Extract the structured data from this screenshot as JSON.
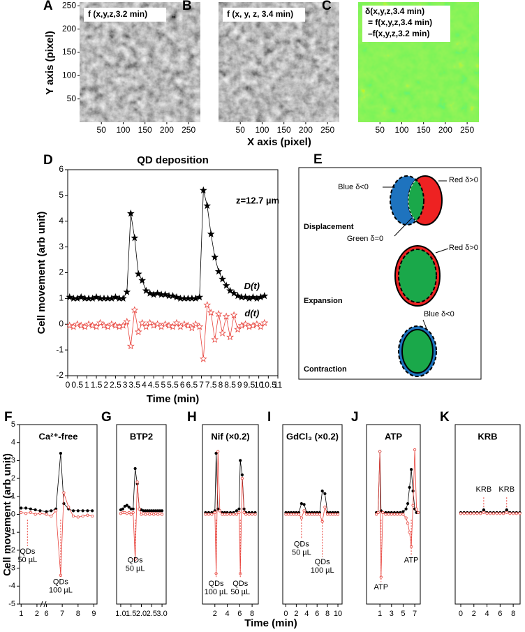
{
  "chart_data": [
    {
      "type": "image",
      "panel": "A",
      "title": "f (x,y,z,3.2 min)",
      "palette": "gray",
      "xlim": [
        0,
        277
      ],
      "xticks": [
        50,
        100,
        150,
        200,
        250
      ],
      "ylim": [
        0,
        258
      ],
      "yticks": [
        50,
        100,
        150,
        200,
        250
      ]
    },
    {
      "type": "image",
      "panel": "B",
      "title": "f (x, y, z, 3.4 min)",
      "palette": "gray",
      "xlim": [
        0,
        277
      ],
      "xticks": [
        50,
        100,
        150,
        200,
        250
      ],
      "ylim": [
        0,
        258
      ]
    },
    {
      "type": "image",
      "panel": "C",
      "title_lines": [
        "δ(x,y,z,3.4 min)",
        "= f(x,y,z,3.4 min)",
        "–f(x,y,z,3.2 min)"
      ],
      "palette": "jet",
      "xlim": [
        0,
        277
      ],
      "xticks": [
        50,
        100,
        150,
        200,
        250
      ],
      "ylim": [
        0,
        258
      ]
    },
    {
      "type": "line",
      "panel": "D",
      "title": "QD deposition",
      "annotation": "z=12.7 µm",
      "x_label": "Time (min)",
      "y_label": "Cell movement (arb unit)",
      "xlim": [
        0,
        11
      ],
      "xticks": [
        0,
        0.5,
        1,
        1.5,
        2,
        2.5,
        3,
        3.5,
        4,
        4.5,
        5,
        5.5,
        6,
        6.5,
        7,
        7.5,
        8,
        8.5,
        9,
        9.5,
        10,
        10.5,
        11
      ],
      "ylim": [
        -2,
        6
      ],
      "yticks": [
        -2,
        -1,
        0,
        1,
        2,
        3,
        4,
        5,
        6
      ],
      "x": [
        0.1,
        0.3,
        0.5,
        0.7,
        0.9,
        1.1,
        1.3,
        1.5,
        1.7,
        1.9,
        2.1,
        2.3,
        2.5,
        2.7,
        2.9,
        3.1,
        3.3,
        3.5,
        3.7,
        3.9,
        4.1,
        4.3,
        4.5,
        4.7,
        4.9,
        5.1,
        5.3,
        5.5,
        5.7,
        5.9,
        6.1,
        6.3,
        6.5,
        6.7,
        6.9,
        7.1,
        7.3,
        7.5,
        7.7,
        7.9,
        8.1,
        8.3,
        8.5,
        8.7,
        8.9,
        9.1,
        9.3,
        9.5,
        9.7,
        9.9,
        10.1,
        10.3
      ],
      "series": [
        {
          "name": "D(t)",
          "color": "#000000",
          "marker": "star",
          "filled": true,
          "values": [
            1.05,
            1.0,
            1.0,
            1.05,
            1.0,
            1.0,
            1.0,
            1.05,
            1.0,
            1.0,
            1.0,
            1.0,
            1.05,
            1.0,
            1.0,
            1.25,
            4.3,
            3.35,
            1.95,
            1.7,
            1.3,
            1.2,
            1.15,
            1.2,
            1.15,
            1.15,
            1.1,
            1.1,
            1.05,
            1.0,
            1.0,
            1.0,
            1.0,
            1.0,
            1.05,
            5.2,
            4.6,
            3.5,
            2.6,
            2.05,
            1.75,
            1.5,
            1.3,
            1.2,
            1.1,
            1.05,
            1.05,
            1.0,
            1.05,
            1.0,
            1.05,
            1.1
          ]
        },
        {
          "name": "d(t)",
          "color": "#e8413a",
          "marker": "star",
          "filled": false,
          "values": [
            -0.05,
            -0.1,
            0.0,
            -0.05,
            -0.1,
            0.0,
            -0.05,
            -0.1,
            0.05,
            -0.05,
            -0.1,
            0.0,
            -0.05,
            -0.1,
            -0.05,
            0.1,
            -0.85,
            0.55,
            -0.3,
            0.05,
            -0.1,
            0.05,
            -0.05,
            0.0,
            -0.1,
            0.0,
            -0.05,
            -0.1,
            0.05,
            -0.1,
            0.0,
            -0.05,
            -0.15,
            0.0,
            -0.1,
            -1.35,
            0.75,
            0.45,
            -0.6,
            0.4,
            -0.35,
            0.3,
            -0.5,
            0.35,
            -0.2,
            -0.05,
            0.0,
            -0.1,
            -0.05,
            0.0,
            -0.1,
            0.05
          ]
        }
      ]
    },
    {
      "type": "line",
      "panel": "F",
      "title": "Ca²⁺-free",
      "xlim": [
        0.9,
        9.2
      ],
      "xbreak": [
        2.4,
        5.8
      ],
      "xticks": [
        1,
        2,
        6,
        7,
        8,
        9
      ],
      "ylim": [
        -5,
        5
      ],
      "yticks": [
        -5,
        -4,
        -3,
        -2,
        -1,
        0,
        1,
        2,
        3,
        4,
        5
      ],
      "x": [
        1,
        1.3,
        1.6,
        1.9,
        2.2,
        6.0,
        6.3,
        6.6,
        6.9,
        7.1,
        7.4,
        7.7,
        8.0,
        8.3,
        8.6,
        8.9
      ],
      "series": [
        {
          "color": "#000000",
          "marker": "circle",
          "filled": true,
          "values": [
            0.35,
            0.35,
            0.3,
            0.25,
            0.2,
            0.15,
            0.2,
            0.3,
            3.4,
            0.6,
            0.3,
            0.2,
            0.2,
            0.2,
            0.2,
            0.2
          ]
        },
        {
          "color": "#e8413a",
          "marker": "circle",
          "filled": false,
          "values": [
            0.1,
            0.05,
            0.1,
            0.0,
            0.05,
            0.0,
            -0.1,
            0.2,
            -3.4,
            1.2,
            0.4,
            -0.1,
            -0.15,
            -0.1,
            -0.05,
            -0.1
          ]
        }
      ],
      "annotations": [
        {
          "x": 1.4,
          "text": [
            "QDs",
            "50 µL"
          ]
        },
        {
          "x": 6.9,
          "text": [
            "QDs",
            "100 µL"
          ]
        }
      ]
    },
    {
      "type": "line",
      "panel": "G",
      "title": "BTP2",
      "xlim": [
        0.8,
        3.2
      ],
      "xticks": [
        {
          "value": 1,
          "label": "1.0"
        },
        {
          "value": 1.5,
          "label": "1.5"
        },
        {
          "value": 2,
          "label": "2.0"
        },
        {
          "value": 2.5,
          "label": "2.5"
        },
        {
          "value": 3,
          "label": "3.0"
        }
      ],
      "ylim": [
        -5,
        5
      ],
      "x": [
        1.0,
        1.1,
        1.2,
        1.3,
        1.4,
        1.5,
        1.6,
        1.7,
        1.8,
        1.9,
        2.0,
        2.1,
        2.2,
        2.3,
        2.4,
        2.5,
        2.6,
        2.7,
        2.8,
        2.9,
        3.0
      ],
      "series": [
        {
          "color": "#000000",
          "marker": "circle",
          "filled": true,
          "values": [
            0.25,
            0.3,
            0.45,
            0.5,
            0.4,
            0.3,
            0.3,
            2.55,
            1.7,
            0.3,
            0.25,
            0.2,
            0.2,
            0.2,
            0.2,
            0.2,
            0.2,
            0.2,
            0.2,
            0.2,
            0.2
          ]
        },
        {
          "color": "#e8413a",
          "marker": "circle",
          "filled": false,
          "values": [
            0.05,
            0.1,
            0.1,
            0.05,
            0.1,
            0.0,
            0.1,
            -2.5,
            1.8,
            0.3,
            0.0,
            0.05,
            0.0,
            0.05,
            0.0,
            0.05,
            0.0,
            0.05,
            0.0,
            0.05,
            0.0
          ]
        }
      ],
      "annotations": [
        {
          "x": 1.7,
          "text": [
            "QDs",
            "50 µL"
          ]
        }
      ]
    },
    {
      "type": "line",
      "panel": "H",
      "title": "Nif (×0.2)",
      "xlim": [
        0,
        9
      ],
      "xticks": [
        2,
        4,
        6,
        8
      ],
      "ylim": [
        -5,
        5
      ],
      "x": [
        0.5,
        1,
        1.5,
        2,
        2.2,
        2.5,
        2.8,
        3.2,
        3.6,
        4,
        4.5,
        5,
        5.5,
        5.9,
        6.1,
        6.4,
        6.7,
        7,
        7.5,
        8,
        8.5
      ],
      "series": [
        {
          "color": "#000000",
          "marker": "circle",
          "filled": true,
          "values": [
            0.1,
            0.1,
            0.1,
            0.2,
            3.4,
            0.3,
            0.2,
            0.1,
            0.1,
            0.1,
            0.1,
            0.1,
            0.2,
            0.3,
            3.0,
            2.2,
            0.3,
            0.1,
            0.1,
            0.1,
            0.1
          ]
        },
        {
          "color": "#e8413a",
          "marker": "circle",
          "filled": false,
          "values": [
            0,
            0,
            0,
            0.1,
            -3.3,
            3.5,
            0.2,
            0,
            0,
            0,
            0,
            0,
            0,
            0.1,
            -3.3,
            2.0,
            0.1,
            0,
            0,
            0,
            0
          ]
        }
      ],
      "annotations": [
        {
          "x": 2.2,
          "text": [
            "QDs",
            "100 µL"
          ]
        },
        {
          "x": 6.1,
          "text": [
            "QDs",
            "50 µL"
          ]
        }
      ]
    },
    {
      "type": "line",
      "panel": "I",
      "title": "GdCl₃ (×0.2)",
      "xlim": [
        -0.6,
        10.8
      ],
      "xticks": [
        0,
        2,
        4,
        6,
        8,
        10
      ],
      "ylim": [
        -5,
        5
      ],
      "x": [
        0,
        0.5,
        1,
        1.5,
        2,
        2.5,
        3,
        3.5,
        4,
        4.5,
        5,
        5.5,
        6,
        6.5,
        7,
        7.5,
        8,
        8.5,
        9,
        9.5,
        10
      ],
      "series": [
        {
          "color": "#000000",
          "marker": "circle",
          "filled": true,
          "values": [
            0.1,
            0.1,
            0.1,
            0.1,
            0.1,
            0.1,
            0.6,
            0.55,
            0.1,
            0.1,
            0.1,
            0.1,
            0.1,
            0.1,
            1.3,
            1.15,
            0.1,
            0.1,
            0.1,
            0.1,
            0.1
          ]
        },
        {
          "color": "#e8413a",
          "marker": "circle",
          "filled": false,
          "values": [
            0,
            0,
            0,
            0,
            0,
            0,
            -0.2,
            0.2,
            0,
            0,
            0,
            0,
            0,
            0,
            -0.4,
            0.4,
            0,
            0,
            0,
            0,
            0
          ]
        }
      ],
      "annotations": [
        {
          "x": 3,
          "text": [
            "QDs",
            "50 µL"
          ]
        },
        {
          "x": 7,
          "text": [
            "QDs",
            "100 µL"
          ]
        }
      ]
    },
    {
      "type": "line",
      "panel": "J",
      "title": "ATP",
      "xlim": [
        -1.3,
        7.95
      ],
      "xticks": [
        1,
        3,
        5,
        7
      ],
      "ylim": [
        -5,
        5
      ],
      "x": [
        0.4,
        0.7,
        1.0,
        1.2,
        1.5,
        2,
        2.5,
        3,
        3.5,
        4,
        4.5,
        5,
        5.5,
        5.8,
        6.1,
        6.4,
        6.7,
        7.0,
        7.3,
        7.6
      ],
      "series": [
        {
          "color": "#000000",
          "marker": "circle",
          "filled": true,
          "values": [
            0.1,
            0.1,
            3.5,
            0.2,
            0.1,
            0.1,
            0.1,
            0.1,
            0.1,
            0.1,
            0.1,
            0.15,
            0.3,
            0.6,
            1.5,
            2.5,
            1.3,
            0.3,
            0.1,
            0.1
          ]
        },
        {
          "color": "#e8413a",
          "marker": "circle",
          "filled": false,
          "values": [
            0,
            0.1,
            3.5,
            -3.5,
            0.1,
            0,
            0,
            0,
            0,
            0,
            0,
            0,
            -0.2,
            -0.5,
            -1.0,
            -1.8,
            0.5,
            3.6,
            0.3,
            0.1
          ]
        }
      ],
      "annotations": [
        {
          "x": 1.2,
          "text": [
            "ATP"
          ]
        },
        {
          "x": 6.4,
          "text": [
            "ATP"
          ]
        }
      ]
    },
    {
      "type": "line",
      "panel": "K",
      "title": "KRB",
      "xlim": [
        -0.85,
        9.05
      ],
      "xticks": [
        0,
        2,
        4,
        6,
        8
      ],
      "ylim": [
        -5,
        5
      ],
      "x": [
        0,
        0.5,
        1,
        1.5,
        2,
        2.5,
        3,
        3.5,
        4,
        4.5,
        5,
        5.5,
        6,
        6.5,
        7,
        7.5,
        8,
        8.5,
        9
      ],
      "series": [
        {
          "color": "#000000",
          "marker": "circle",
          "filled": true,
          "values": [
            0.1,
            0.1,
            0.1,
            0.1,
            0.1,
            0.1,
            0.1,
            0.25,
            0.1,
            0.1,
            0.1,
            0.1,
            0.1,
            0.1,
            0.25,
            0.1,
            0.1,
            0.1,
            0.1
          ]
        },
        {
          "color": "#e8413a",
          "marker": "circle",
          "filled": false,
          "values": [
            0.05,
            0.05,
            0.05,
            0.05,
            0.05,
            0.05,
            0.05,
            0.1,
            0.05,
            0.05,
            0.05,
            0.05,
            0.05,
            0.05,
            0.1,
            0.05,
            0.05,
            0.05,
            0.05
          ]
        }
      ],
      "annotations": [
        {
          "x": 3.5,
          "text": [
            "KRB"
          ]
        },
        {
          "x": 7,
          "text": [
            "KRB"
          ]
        }
      ]
    }
  ],
  "shared_labels": {
    "top_x": "X axis (pixel)",
    "top_y": "Y axis (pixel)",
    "bottom_x": "Time (min)",
    "bottom_y": "Cell movement (arb unit)"
  },
  "diagram": {
    "panel": "E",
    "rows": [
      {
        "name": "Displacement",
        "labels": [
          "Blue δ<0",
          "Red δ>0",
          "Green δ=0"
        ]
      },
      {
        "name": "Expansion",
        "labels": [
          "Red δ>0"
        ]
      },
      {
        "name": "Contraction",
        "labels": [
          "Blue δ<0"
        ]
      }
    ]
  }
}
